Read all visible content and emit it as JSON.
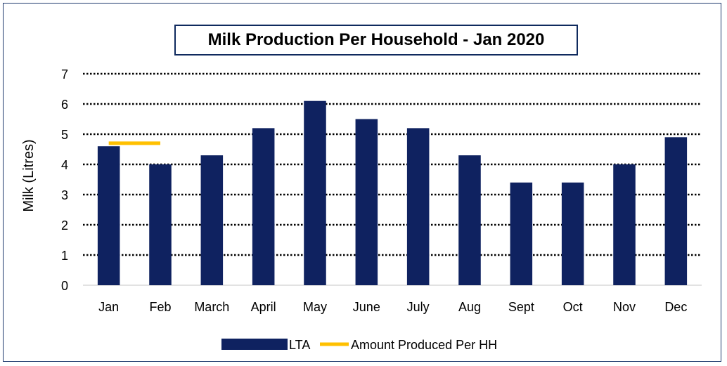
{
  "chart_data": {
    "type": "bar",
    "title": "Milk Production Per Household - Jan 2020",
    "xlabel": "",
    "ylabel": "Milk (Litres)",
    "ylim": [
      0,
      7
    ],
    "yticks": [
      0,
      1,
      2,
      3,
      4,
      5,
      6,
      7
    ],
    "grid": "horizontal dotted",
    "legend_position": "bottom",
    "categories": [
      "Jan",
      "Feb",
      "March",
      "April",
      "May",
      "June",
      "July",
      "Aug",
      "Sept",
      "Oct",
      "Nov",
      "Dec"
    ],
    "series": [
      {
        "name": "LTA",
        "kind": "bar",
        "color": "#0f2260",
        "values": [
          4.6,
          4.0,
          4.3,
          5.2,
          6.1,
          5.5,
          5.2,
          4.3,
          3.4,
          3.4,
          4.0,
          4.9
        ]
      },
      {
        "name": "Amount Produced Per HH",
        "kind": "line",
        "color": "#ffc000",
        "values": [
          4.7,
          4.7,
          null,
          null,
          null,
          null,
          null,
          null,
          null,
          null,
          null,
          null
        ]
      }
    ]
  }
}
